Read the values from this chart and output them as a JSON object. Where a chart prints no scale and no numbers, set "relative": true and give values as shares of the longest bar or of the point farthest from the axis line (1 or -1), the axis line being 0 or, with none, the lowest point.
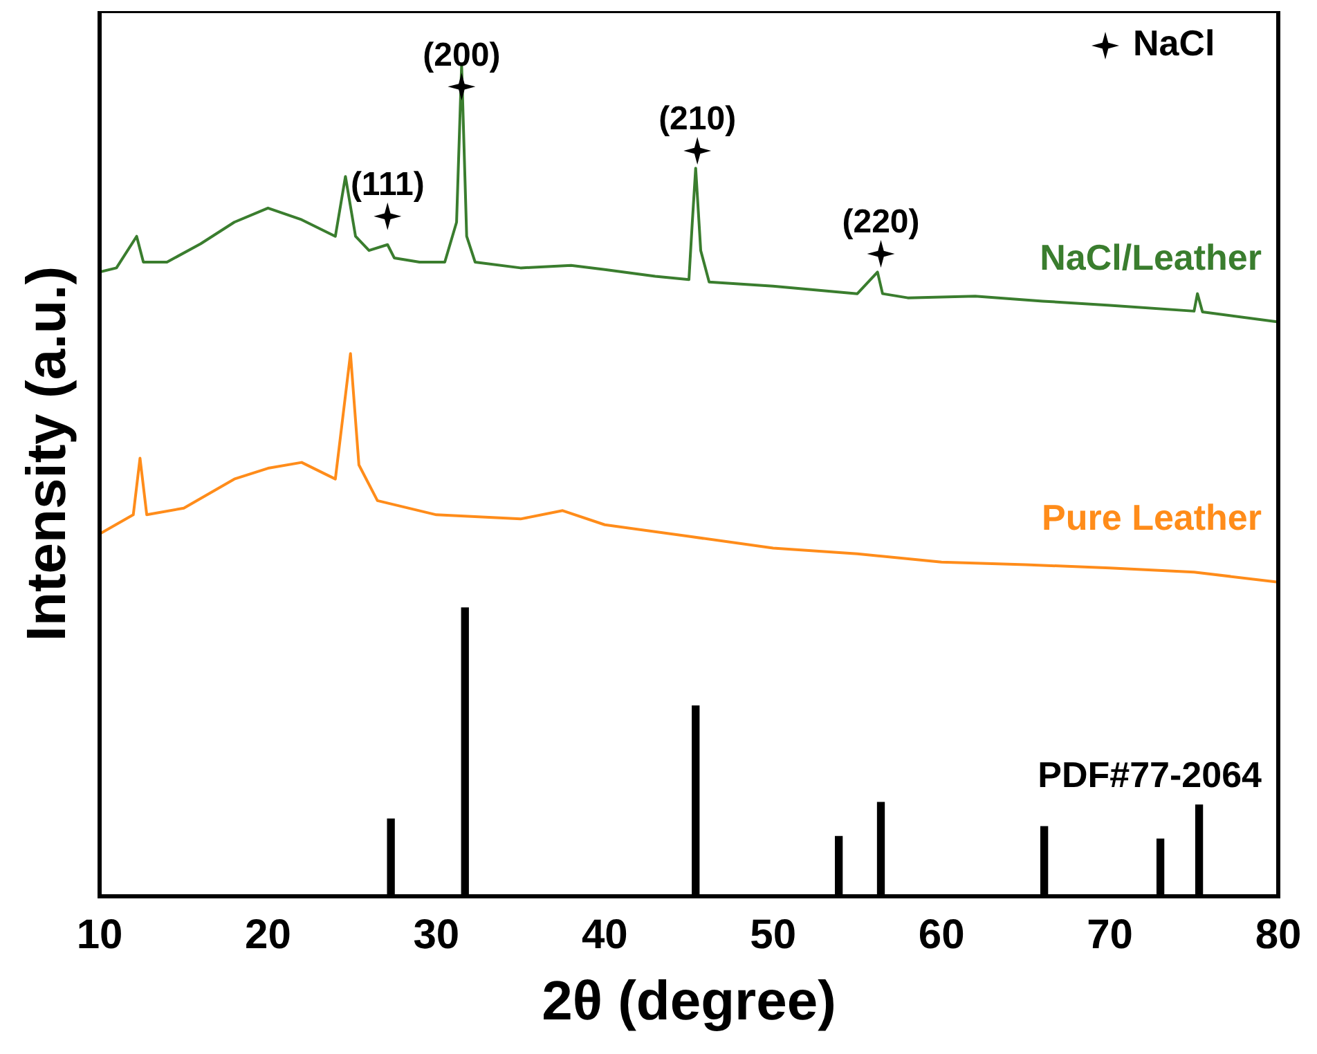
{
  "chart_data": {
    "type": "line",
    "xlabel": "2θ (degree)",
    "ylabel": "Intensity (a.u.)",
    "relative": true,
    "xlim": [
      10,
      80
    ],
    "xticks": [
      10,
      20,
      30,
      40,
      50,
      60,
      70,
      80
    ],
    "grid": false,
    "legend": "top right",
    "line_style": "solid",
    "marker": "none",
    "annotations": [
      {
        "text": "(111)",
        "x": 27.1,
        "y": 0.818
      },
      {
        "text": "(200)",
        "x": 31.5,
        "y": 0.974
      },
      {
        "text": "(210)",
        "x": 45.5,
        "y": 0.897
      },
      {
        "text": "(220)",
        "x": 56.4,
        "y": 0.773
      }
    ],
    "series": [
      {
        "name": "NaCl/Leather",
        "color": "#3a7d2e",
        "x": [
          10,
          11,
          12.2,
          12.6,
          14,
          16,
          18,
          20,
          22,
          24,
          24.6,
          25.2,
          26,
          27.1,
          27.5,
          29,
          30.5,
          31.2,
          31.5,
          31.8,
          32.3,
          35,
          38,
          40,
          43,
          45,
          45.2,
          45.4,
          45.7,
          46.2,
          50,
          55,
          56.2,
          56.5,
          58,
          62,
          66,
          70,
          75,
          75.2,
          75.5,
          80
        ],
        "values": [
          0.751,
          0.756,
          0.794,
          0.763,
          0.763,
          0.785,
          0.811,
          0.828,
          0.814,
          0.794,
          0.866,
          0.794,
          0.777,
          0.784,
          0.768,
          0.763,
          0.763,
          0.811,
          1.0,
          0.794,
          0.763,
          0.756,
          0.759,
          0.754,
          0.746,
          0.742,
          0.811,
          0.876,
          0.777,
          0.739,
          0.734,
          0.725,
          0.751,
          0.725,
          0.72,
          0.722,
          0.716,
          0.711,
          0.704,
          0.725,
          0.703,
          0.691
        ]
      },
      {
        "name": "Pure Leather",
        "color": "#ff8c1a",
        "x": [
          10,
          12,
          12.4,
          12.8,
          15,
          18,
          20,
          22,
          24,
          24.9,
          25.4,
          26.5,
          30,
          35,
          37.5,
          40,
          45,
          50,
          55,
          60,
          65,
          70,
          75,
          80
        ],
        "values": [
          0.436,
          0.459,
          0.527,
          0.459,
          0.467,
          0.502,
          0.515,
          0.522,
          0.502,
          0.653,
          0.519,
          0.476,
          0.459,
          0.454,
          0.464,
          0.447,
          0.433,
          0.419,
          0.412,
          0.402,
          0.399,
          0.395,
          0.39,
          0.378
        ]
      },
      {
        "name": "PDF#77-2064",
        "type": "bar",
        "color": "#000000",
        "x": [
          27.3,
          31.7,
          45.4,
          53.9,
          56.4,
          66.1,
          73.0,
          75.3
        ],
        "values": [
          0.093,
          0.347,
          0.229,
          0.072,
          0.113,
          0.084,
          0.069,
          0.11
        ]
      },
      {
        "name": "NaCl",
        "type": "scatter",
        "marker": "star",
        "color": "#000000",
        "x": [
          27.1,
          31.5,
          45.5,
          56.4
        ],
        "values": [
          0.818,
          0.974,
          0.897,
          0.773
        ]
      }
    ]
  }
}
